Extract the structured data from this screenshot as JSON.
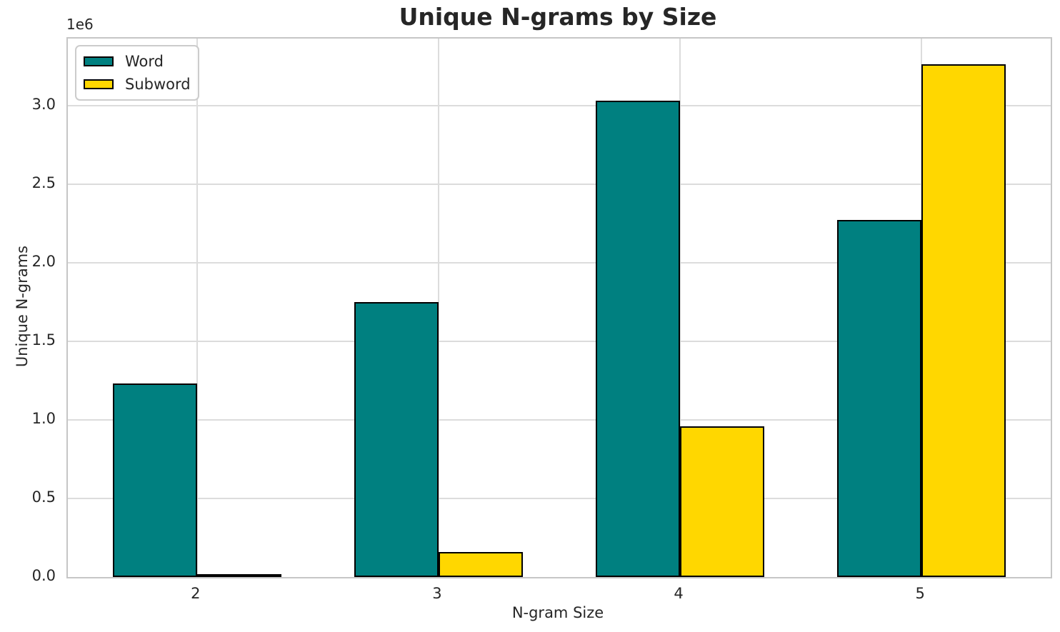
{
  "chart_data": {
    "type": "bar",
    "title": "Unique N-grams by Size",
    "xlabel": "N-gram Size",
    "ylabel": "Unique N-grams",
    "y_offset_label": "1e6",
    "categories": [
      "2",
      "3",
      "4",
      "5"
    ],
    "x_values": [
      2,
      3,
      4,
      5
    ],
    "series": [
      {
        "name": "Word",
        "color": "#008080",
        "values": [
          1230000,
          1750000,
          3030000,
          2270000
        ]
      },
      {
        "name": "Subword",
        "color": "#FFD700",
        "values": [
          20000,
          160000,
          960000,
          3260000
        ]
      }
    ],
    "bar_width_units": 0.35,
    "bar_edge_color": "#000000",
    "xlim": [
      1.465,
      5.535
    ],
    "ylim": [
      0,
      3425000
    ],
    "yticks": [
      {
        "value": 0,
        "label": "0.0"
      },
      {
        "value": 500000,
        "label": "0.5"
      },
      {
        "value": 1000000,
        "label": "1.0"
      },
      {
        "value": 1500000,
        "label": "1.5"
      },
      {
        "value": 2000000,
        "label": "2.0"
      },
      {
        "value": 2500000,
        "label": "2.5"
      },
      {
        "value": 3000000,
        "label": "3.0"
      }
    ],
    "grid": true,
    "legend_position": "upper-left",
    "colors": {
      "text": "#262626",
      "grid": "#dcdcdc",
      "spine": "#c6c6c6",
      "background": "#ffffff"
    }
  }
}
